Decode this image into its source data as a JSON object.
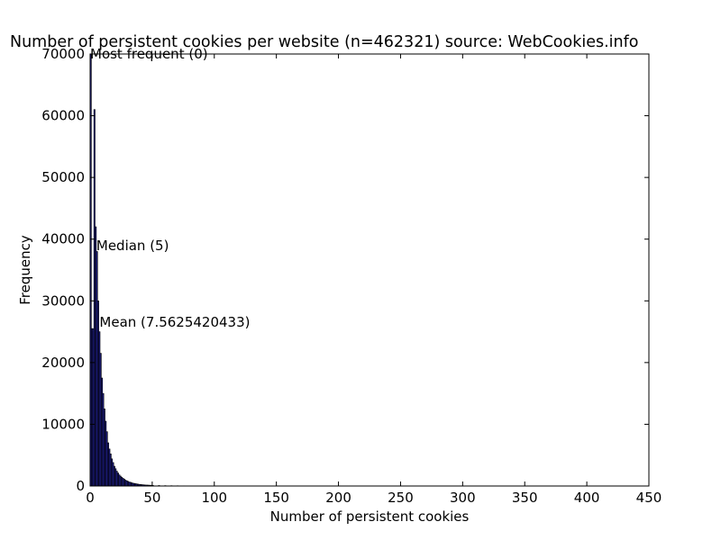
{
  "chart_data": {
    "type": "bar",
    "title": "Number of persistent cookies per website (n=462321) source: WebCookies.info",
    "xlabel": "Number of persistent cookies",
    "ylabel": "Frequency",
    "xlim": [
      0,
      450
    ],
    "ylim": [
      0,
      70000
    ],
    "xticks": [
      0,
      50,
      100,
      150,
      200,
      250,
      300,
      350,
      400,
      450
    ],
    "yticks": [
      0,
      10000,
      20000,
      30000,
      40000,
      50000,
      60000,
      70000
    ],
    "grid": false,
    "bin_width": 1,
    "x": [
      0,
      1,
      2,
      3,
      4,
      5,
      6,
      7,
      8,
      9,
      10,
      11,
      12,
      13,
      14,
      15,
      16,
      17,
      18,
      19,
      20,
      21,
      22,
      23,
      24,
      25,
      26,
      27,
      28,
      29,
      30,
      31,
      32,
      33,
      34,
      35,
      36,
      37,
      38,
      39,
      40,
      41,
      42,
      43,
      44,
      45,
      46,
      47,
      48,
      49,
      50,
      55,
      60,
      65,
      70,
      75,
      80,
      85,
      90
    ],
    "values": [
      70000,
      25500,
      25500,
      61000,
      42000,
      38000,
      30000,
      25000,
      21500,
      17500,
      15000,
      12500,
      10500,
      8800,
      7000,
      6000,
      5200,
      4400,
      3800,
      3200,
      2800,
      2400,
      2100,
      1800,
      1600,
      1400,
      1250,
      1100,
      950,
      850,
      750,
      650,
      600,
      520,
      460,
      420,
      380,
      340,
      300,
      270,
      250,
      220,
      200,
      180,
      160,
      150,
      140,
      130,
      120,
      110,
      100,
      80,
      60,
      50,
      40,
      30,
      25,
      20,
      15
    ],
    "annotations": [
      {
        "text": "Most frequent (0)",
        "x": 0,
        "y": 69300
      },
      {
        "text": "Median (5)",
        "x": 5,
        "y": 38200
      },
      {
        "text": "Mean (7.5625420433)",
        "x": 7.56,
        "y": 25800
      }
    ],
    "colors": {
      "bar_fill": "#1f1f8c",
      "bar_edge": "#000000",
      "axes": "#000000",
      "background": "#ffffff"
    }
  }
}
